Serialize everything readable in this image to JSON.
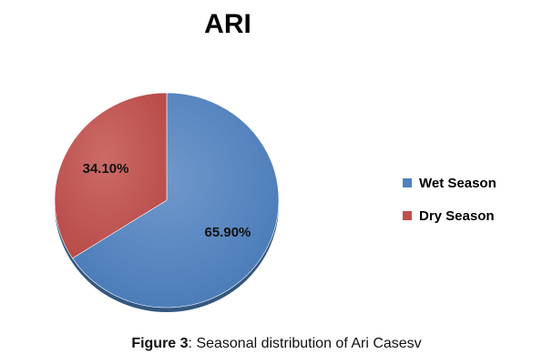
{
  "chart_data": {
    "type": "pie",
    "title": "ARI",
    "categories": [
      "Wet Season",
      "Dry Season"
    ],
    "values": [
      65.9,
      34.1
    ],
    "data_labels": [
      "65.90%",
      "34.10%"
    ],
    "legend_placement": "right"
  },
  "colors": {
    "wet_season": "#4f81bd",
    "dry_season": "#c0504d"
  },
  "caption": {
    "label": "Figure 3",
    "text": ": Seasonal distribution of Ari Casesv"
  }
}
